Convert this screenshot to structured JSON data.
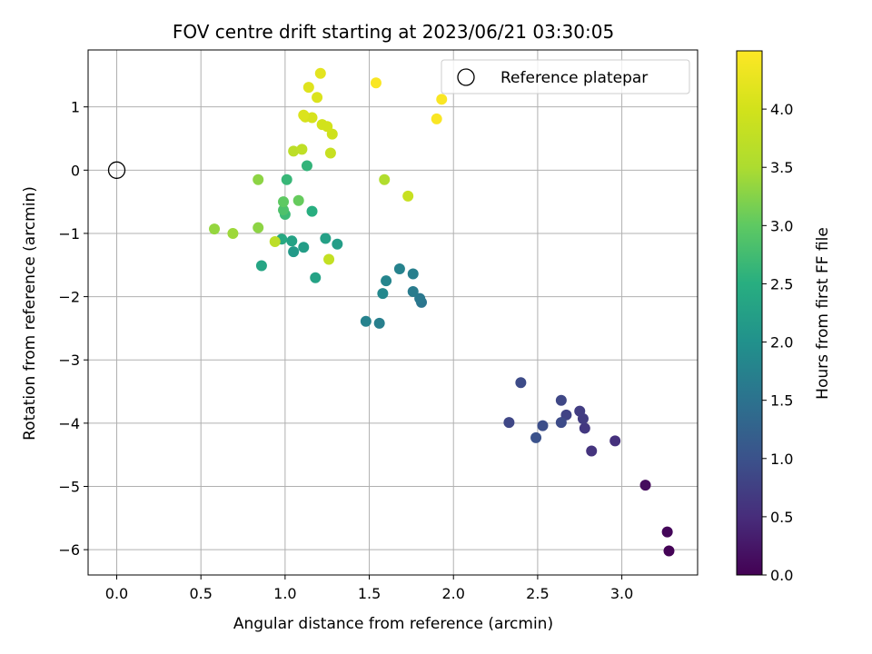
{
  "chart_data": {
    "type": "scatter",
    "title": "FOV centre drift starting at 2023/06/21 03:30:05",
    "xlabel": "Angular distance from reference (arcmin)",
    "ylabel": "Rotation from reference (arcmin)",
    "colorbar_label": "Hours from first FF file",
    "xlim": [
      -0.17,
      3.45
    ],
    "ylim": [
      -6.4,
      1.9
    ],
    "clim": [
      0,
      4.5
    ],
    "x_ticks": [
      0.0,
      0.5,
      1.0,
      1.5,
      2.0,
      2.5,
      3.0
    ],
    "x_tick_labels": [
      "0.0",
      "0.5",
      "1.0",
      "1.5",
      "2.0",
      "2.5",
      "3.0"
    ],
    "y_ticks": [
      1,
      0,
      -1,
      -2,
      -3,
      -4,
      -5,
      -6
    ],
    "y_tick_labels": [
      "1",
      "0",
      "−1",
      "−2",
      "−3",
      "−4",
      "−5",
      "−6"
    ],
    "colorbar_ticks": [
      0,
      0.5,
      1,
      1.5,
      2,
      2.5,
      3,
      3.5,
      4
    ],
    "colorbar_tick_labels": [
      "0.0",
      "0.5",
      "1.0",
      "1.5",
      "2.0",
      "2.5",
      "3.0",
      "3.5",
      "4.0"
    ],
    "grid": true,
    "legend": {
      "label": "Reference platepar",
      "placement": "top-right"
    },
    "reference_point": {
      "x": 0.0,
      "y": 0.0
    },
    "points": [
      {
        "x": 3.28,
        "y": -6.02,
        "h": 0.02
      },
      {
        "x": 3.27,
        "y": -5.72,
        "h": 0.06
      },
      {
        "x": 3.14,
        "y": -4.98,
        "h": 0.12
      },
      {
        "x": 2.96,
        "y": -4.28,
        "h": 0.55
      },
      {
        "x": 2.82,
        "y": -4.44,
        "h": 0.6
      },
      {
        "x": 2.78,
        "y": -4.08,
        "h": 0.65
      },
      {
        "x": 2.77,
        "y": -3.93,
        "h": 0.7
      },
      {
        "x": 2.75,
        "y": -3.81,
        "h": 0.72
      },
      {
        "x": 2.67,
        "y": -3.87,
        "h": 0.8
      },
      {
        "x": 2.64,
        "y": -3.64,
        "h": 0.85
      },
      {
        "x": 2.64,
        "y": -3.99,
        "h": 0.9
      },
      {
        "x": 2.53,
        "y": -4.04,
        "h": 0.95
      },
      {
        "x": 2.49,
        "y": -4.23,
        "h": 1.0
      },
      {
        "x": 2.4,
        "y": -3.36,
        "h": 0.9
      },
      {
        "x": 2.33,
        "y": -3.99,
        "h": 0.85
      },
      {
        "x": 1.81,
        "y": -2.09,
        "h": 1.55
      },
      {
        "x": 1.8,
        "y": -2.03,
        "h": 1.6
      },
      {
        "x": 1.76,
        "y": -1.92,
        "h": 1.65
      },
      {
        "x": 1.76,
        "y": -1.64,
        "h": 1.7
      },
      {
        "x": 1.68,
        "y": -1.56,
        "h": 1.75
      },
      {
        "x": 1.6,
        "y": -1.75,
        "h": 1.8
      },
      {
        "x": 1.58,
        "y": -1.95,
        "h": 1.85
      },
      {
        "x": 1.56,
        "y": -2.42,
        "h": 1.7
      },
      {
        "x": 1.48,
        "y": -2.39,
        "h": 1.75
      },
      {
        "x": 1.31,
        "y": -1.17,
        "h": 2.2
      },
      {
        "x": 1.24,
        "y": -1.08,
        "h": 2.25
      },
      {
        "x": 1.18,
        "y": -1.7,
        "h": 2.3
      },
      {
        "x": 1.16,
        "y": -0.65,
        "h": 2.5
      },
      {
        "x": 1.11,
        "y": -1.22,
        "h": 2.2
      },
      {
        "x": 1.05,
        "y": -1.29,
        "h": 2.15
      },
      {
        "x": 1.04,
        "y": -1.12,
        "h": 2.3
      },
      {
        "x": 0.98,
        "y": -1.09,
        "h": 2.4
      },
      {
        "x": 0.86,
        "y": -1.51,
        "h": 2.35
      },
      {
        "x": 1.13,
        "y": 0.07,
        "h": 2.6
      },
      {
        "x": 1.01,
        "y": -0.15,
        "h": 2.65
      },
      {
        "x": 1.0,
        "y": -0.7,
        "h": 2.7
      },
      {
        "x": 0.99,
        "y": -0.63,
        "h": 2.85
      },
      {
        "x": 0.99,
        "y": -0.5,
        "h": 3.0
      },
      {
        "x": 1.08,
        "y": -0.48,
        "h": 3.05
      },
      {
        "x": 0.84,
        "y": -0.15,
        "h": 3.3
      },
      {
        "x": 0.84,
        "y": -0.91,
        "h": 3.3
      },
      {
        "x": 0.69,
        "y": -1.0,
        "h": 3.4
      },
      {
        "x": 0.58,
        "y": -0.93,
        "h": 3.35
      },
      {
        "x": 0.94,
        "y": -1.13,
        "h": 3.7
      },
      {
        "x": 1.26,
        "y": -1.41,
        "h": 3.8
      },
      {
        "x": 1.05,
        "y": 0.3,
        "h": 3.7
      },
      {
        "x": 1.1,
        "y": 0.33,
        "h": 3.75
      },
      {
        "x": 1.27,
        "y": 0.27,
        "h": 3.85
      },
      {
        "x": 1.28,
        "y": 0.57,
        "h": 3.95
      },
      {
        "x": 1.22,
        "y": 0.72,
        "h": 4.0
      },
      {
        "x": 1.25,
        "y": 0.69,
        "h": 4.0
      },
      {
        "x": 1.16,
        "y": 0.83,
        "h": 4.05
      },
      {
        "x": 1.12,
        "y": 0.84,
        "h": 4.05
      },
      {
        "x": 1.11,
        "y": 0.87,
        "h": 4.1
      },
      {
        "x": 1.19,
        "y": 1.15,
        "h": 4.1
      },
      {
        "x": 1.14,
        "y": 1.31,
        "h": 4.15
      },
      {
        "x": 1.21,
        "y": 1.53,
        "h": 4.2
      },
      {
        "x": 1.59,
        "y": -0.15,
        "h": 3.55
      },
      {
        "x": 1.73,
        "y": -0.41,
        "h": 3.85
      },
      {
        "x": 1.54,
        "y": 1.38,
        "h": 4.45
      },
      {
        "x": 1.93,
        "y": 1.12,
        "h": 4.45
      },
      {
        "x": 1.9,
        "y": 0.81,
        "h": 4.45
      }
    ]
  }
}
